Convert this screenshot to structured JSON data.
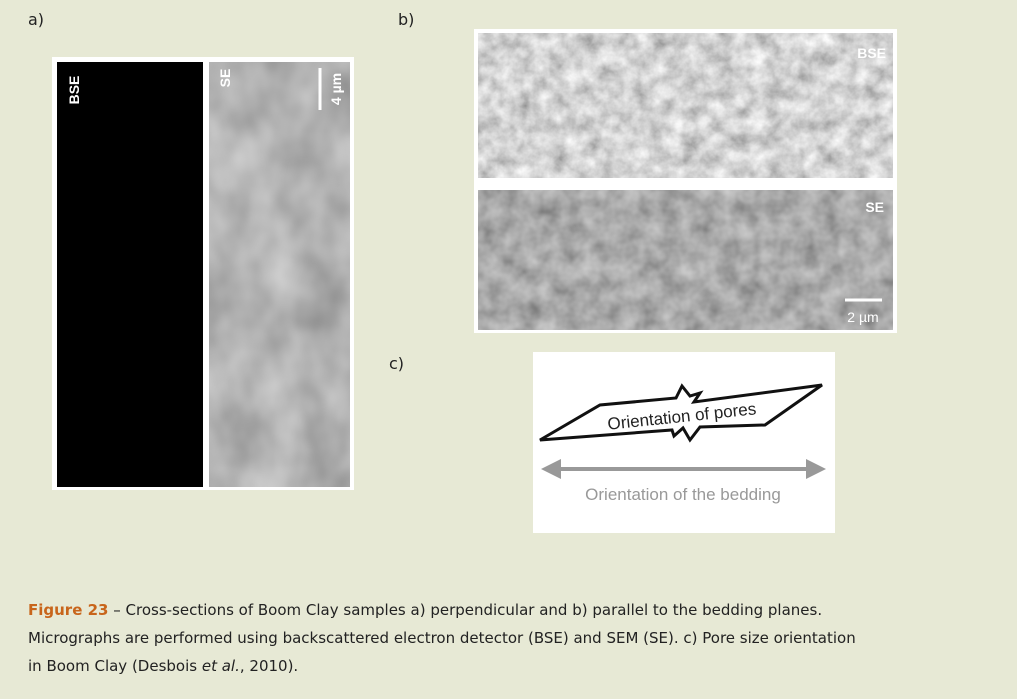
{
  "panels": {
    "a": {
      "label": "a)",
      "left_tag": "BSE",
      "right_tag": "SE",
      "scale": "4 µm"
    },
    "b": {
      "label": "b)",
      "top_tag": "BSE",
      "bottom_tag": "SE",
      "scale": "2 µm"
    },
    "c": {
      "label": "c)",
      "pores": "Orientation of pores",
      "bedding": "Orientation of the bedding"
    }
  },
  "caption": {
    "label": "Figure 23",
    "text_1": " – Cross-sections of Boom Clay samples a) perpendicular and b) parallel to the bedding planes. Micrographs are performed using backscattered electron detector (BSE) and SEM (SE). c) Pore size orientation in Boom Clay (Desbois ",
    "emphasis": "et al.",
    "text_2": ", 2010)."
  }
}
